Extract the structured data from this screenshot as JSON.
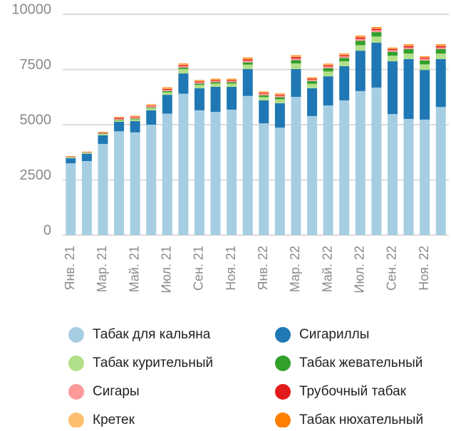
{
  "chart_data": {
    "type": "stacked_bar",
    "categories": [
      "Янв. 21",
      null,
      "Мар. 21",
      null,
      "Май. 21",
      null,
      "Июл. 21",
      null,
      "Сен. 21",
      null,
      "Ноя. 21",
      null,
      "Янв. 22",
      null,
      "Мар. 22",
      null,
      "Май. 22",
      null,
      "Июл. 22",
      null,
      "Сен. 22",
      null,
      "Ноя. 22",
      null
    ],
    "series": [
      {
        "name": "Табак для кальяна",
        "color": "#a6cee3",
        "values": [
          3250,
          3350,
          4130,
          4700,
          4650,
          5000,
          5500,
          6400,
          5650,
          5580,
          5680,
          6300,
          5060,
          4870,
          6260,
          5390,
          5870,
          6100,
          6520,
          6680,
          5480,
          5260,
          5230,
          5800
        ]
      },
      {
        "name": "Сигариллы",
        "color": "#1f78b4",
        "values": [
          230,
          330,
          390,
          430,
          510,
          650,
          850,
          920,
          1000,
          1130,
          1030,
          1220,
          1040,
          1100,
          1260,
          1260,
          1320,
          1550,
          1830,
          2030,
          2390,
          2710,
          2250,
          2170
        ]
      },
      {
        "name": "Табак курительный",
        "color": "#b2df8a",
        "values": [
          40,
          40,
          60,
          60,
          80,
          100,
          120,
          200,
          150,
          150,
          150,
          200,
          150,
          180,
          250,
          200,
          220,
          220,
          250,
          280,
          250,
          250,
          250,
          250
        ]
      },
      {
        "name": "Табак жевательный",
        "color": "#33a02c",
        "values": [
          10,
          10,
          20,
          30,
          30,
          30,
          50,
          60,
          60,
          60,
          60,
          100,
          80,
          90,
          150,
          120,
          150,
          150,
          200,
          200,
          180,
          200,
          180,
          200
        ]
      },
      {
        "name": "Сигары",
        "color": "#fb9a99",
        "values": [
          20,
          20,
          30,
          50,
          50,
          50,
          60,
          70,
          60,
          60,
          60,
          80,
          70,
          70,
          80,
          70,
          80,
          80,
          90,
          90,
          80,
          80,
          80,
          80
        ]
      },
      {
        "name": "Трубочный табак",
        "color": "#e31a1c",
        "values": [
          10,
          10,
          20,
          40,
          30,
          30,
          40,
          50,
          40,
          40,
          40,
          60,
          40,
          40,
          60,
          40,
          50,
          50,
          60,
          60,
          50,
          60,
          50,
          60
        ]
      },
      {
        "name": "Кретек",
        "color": "#fdbf6f",
        "values": [
          10,
          10,
          20,
          20,
          30,
          40,
          40,
          40,
          30,
          30,
          30,
          40,
          30,
          30,
          40,
          30,
          40,
          40,
          40,
          40,
          30,
          40,
          30,
          40
        ]
      },
      {
        "name": "Табак нюхательный",
        "color": "#ff7f00",
        "values": [
          10,
          10,
          10,
          20,
          20,
          20,
          30,
          30,
          30,
          30,
          30,
          40,
          30,
          30,
          40,
          30,
          30,
          30,
          40,
          40,
          30,
          40,
          30,
          40
        ]
      }
    ],
    "ylim": [
      0,
      10000
    ],
    "yticks": [
      0,
      2500,
      5000,
      7500,
      10000
    ],
    "grid": true,
    "legend": "bottom"
  }
}
